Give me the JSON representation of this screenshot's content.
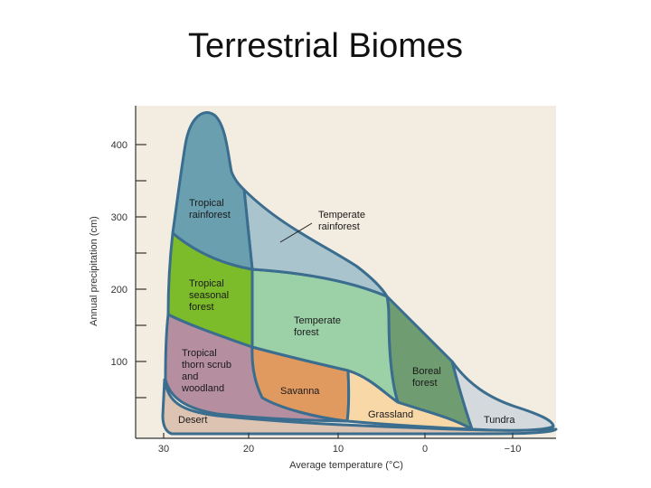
{
  "title": "Terrestrial Biomes",
  "axes": {
    "x_label": "Average temperature (°C)",
    "y_label": "Annual precipitation (cm)",
    "x_ticks": [
      "30",
      "20",
      "10",
      "0",
      "−10"
    ],
    "y_ticks": [
      "400",
      "300",
      "200",
      "100"
    ]
  },
  "biomes": [
    {
      "key": "tropical-rainforest",
      "lines": [
        "Tropical",
        "rainforest"
      ],
      "color": "#6a9fb0"
    },
    {
      "key": "temperate-rainforest",
      "lines": [
        "Temperate",
        "rainforest"
      ],
      "color": "#a9c4cc"
    },
    {
      "key": "tropical-seasonal-forest",
      "lines": [
        "Tropical",
        "seasonal",
        "forest"
      ],
      "color": "#7cbb2a"
    },
    {
      "key": "temperate-forest",
      "lines": [
        "Temperate",
        "forest"
      ],
      "color": "#9cd1a8"
    },
    {
      "key": "boreal-forest",
      "lines": [
        "Boreal",
        "forest"
      ],
      "color": "#6f9c70"
    },
    {
      "key": "tropical-thorn-scrub",
      "lines": [
        "Tropical",
        "thorn scrub",
        "and",
        "woodland"
      ],
      "color": "#b58fa0"
    },
    {
      "key": "savanna",
      "lines": [
        "Savanna"
      ],
      "color": "#e09a60"
    },
    {
      "key": "grassland",
      "lines": [
        "Grassland"
      ],
      "color": "#f9d8a8"
    },
    {
      "key": "desert",
      "lines": [
        "Desert"
      ],
      "color": "#dcc3b2"
    },
    {
      "key": "tundra",
      "lines": [
        "Tundra"
      ],
      "color": "#d3d9dc"
    }
  ],
  "colors": {
    "background": "#f3ece0",
    "outline": "#3b6d8f",
    "axis": "#333333"
  }
}
